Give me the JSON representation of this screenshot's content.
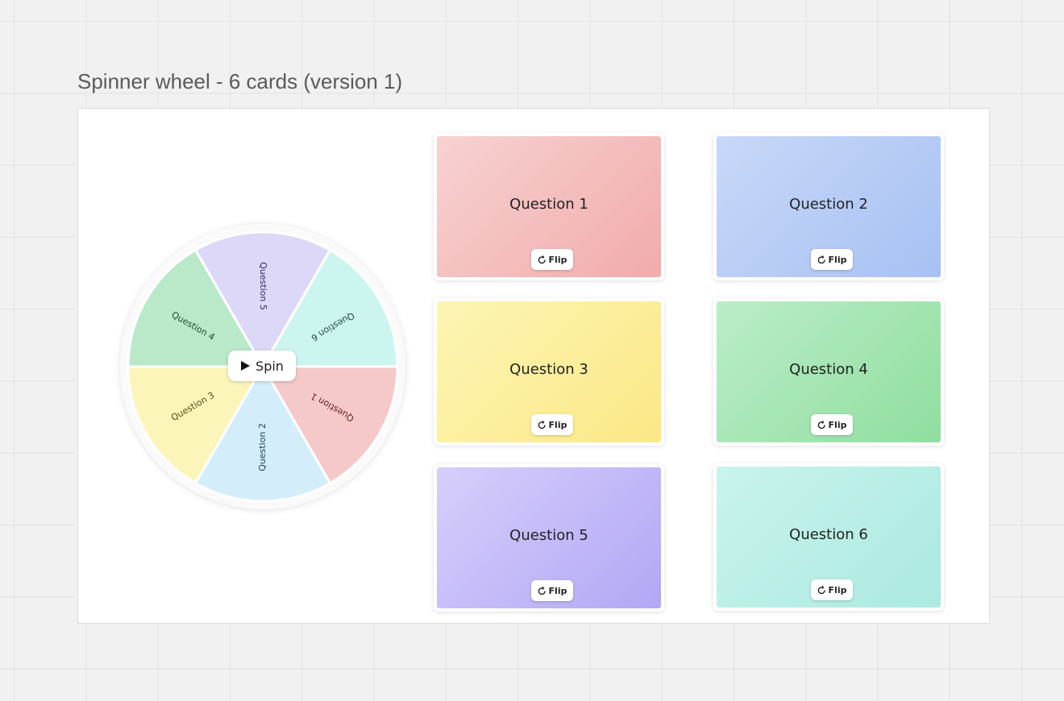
{
  "header": {
    "title": "Spinner wheel - 6 cards (version 1)"
  },
  "wheel": {
    "segments": [
      "Question 5",
      "Question 6",
      "Question 1",
      "Question 2",
      "Question 3",
      "Question 4"
    ],
    "button": "Spin"
  },
  "cards": [
    {
      "question": "Question 1",
      "button": "Flip"
    },
    {
      "question": "Question 2",
      "button": "Flip"
    },
    {
      "question": "Question 3",
      "button": "Flip"
    },
    {
      "question": "Question 4",
      "button": "Flip"
    },
    {
      "question": "Question 5",
      "button": "Flip"
    },
    {
      "question": "Question 6",
      "button": "Flip"
    }
  ]
}
